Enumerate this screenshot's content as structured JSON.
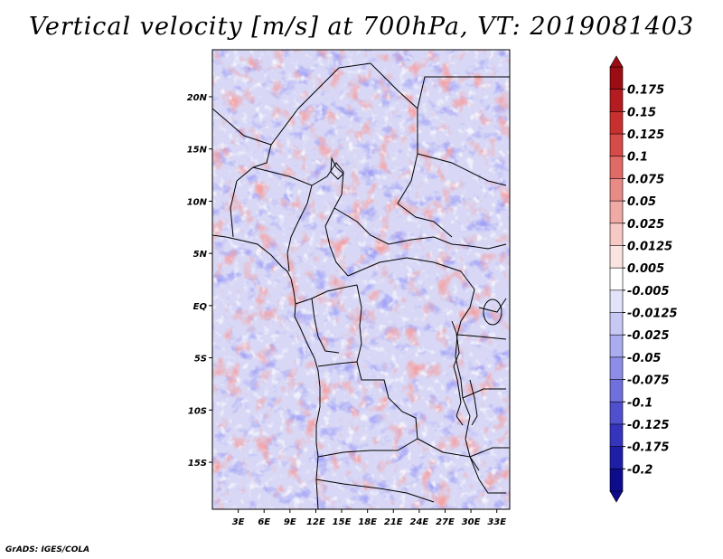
{
  "title": "Vertical velocity [m/s] at 700hPa, VT: 2019081403",
  "footer": "GrADS: IGES/COLA",
  "map": {
    "lat_labels": [
      "20N",
      "15N",
      "10N",
      "5N",
      "EQ",
      "5S",
      "10S",
      "15S"
    ],
    "lat_values": [
      20,
      15,
      10,
      5,
      0,
      -5,
      -10,
      -15
    ],
    "lon_labels": [
      "3E",
      "6E",
      "9E",
      "12E",
      "15E",
      "18E",
      "21E",
      "24E",
      "27E",
      "30E",
      "33E"
    ],
    "lon_values": [
      3,
      6,
      9,
      12,
      15,
      18,
      21,
      24,
      27,
      30,
      33
    ],
    "lon_range": [
      0,
      34.5
    ],
    "lat_range": [
      -19.5,
      24.5
    ],
    "field": "vertical velocity",
    "units": "m/s",
    "level": "700hPa"
  },
  "colorbar": {
    "labels": [
      "0.175",
      "0.15",
      "0.125",
      "0.1",
      "0.075",
      "0.05",
      "0.025",
      "0.0125",
      "0.005",
      "-0.005",
      "-0.0125",
      "-0.025",
      "-0.05",
      "-0.075",
      "-0.1",
      "-0.125",
      "-0.175",
      "-0.2"
    ],
    "colors": [
      "#9b0d12",
      "#b51c22",
      "#c8302f",
      "#d64b48",
      "#e06a65",
      "#e88b86",
      "#f0aaa5",
      "#f6c9c5",
      "#fbe3e1",
      "#ffffff",
      "#e2e2fa",
      "#c8c8f5",
      "#ababef",
      "#8d8de8",
      "#6f6fdd",
      "#5050cf",
      "#3434bd",
      "#1e1ea6",
      "#0c0c8c"
    ]
  }
}
